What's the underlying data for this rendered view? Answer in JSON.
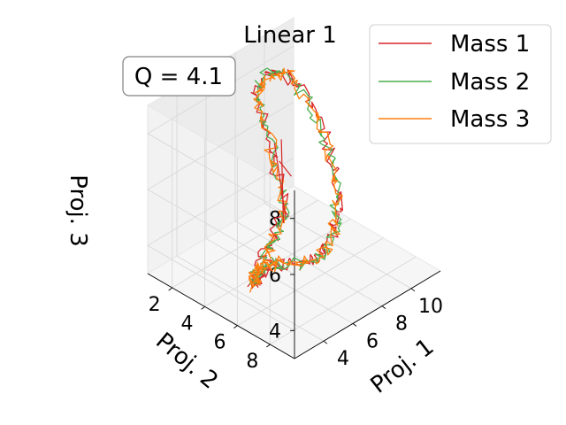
{
  "chart_data": {
    "type": "line",
    "projection": "3d",
    "title": "Linear 1",
    "annotation": "Q = 4.1",
    "xlabel": "Proj. 1",
    "ylabel": "Proj. 2",
    "zlabel": "Proj. 3",
    "xlim": [
      2,
      12
    ],
    "ylim": [
      0.5,
      9.5
    ],
    "zlim": [
      3,
      9
    ],
    "xticks": [
      "4",
      "6",
      "8",
      "10"
    ],
    "yticks": [
      "2",
      "4",
      "6",
      "8"
    ],
    "zticks": [
      "4",
      "6",
      "8"
    ],
    "grid": true,
    "legend_position": "top-right",
    "series": [
      {
        "name": "Mass 1",
        "color": "#d62728"
      },
      {
        "name": "Mass 2",
        "color": "#4caf50"
      },
      {
        "name": "Mass 3",
        "color": "#ff7f0e"
      }
    ],
    "trajectory_guide": {
      "x": [
        3.2,
        4.0,
        4.8,
        5.6,
        6.3,
        6.9,
        7.3,
        7.6,
        8.0,
        8.4,
        8.9,
        9.4,
        9.8,
        10.0,
        9.9,
        9.6,
        9.1,
        8.5,
        7.8,
        7.0,
        6.2,
        5.4,
        4.6,
        3.9,
        3.4,
        3.1,
        3.0,
        3.1,
        3.2
      ],
      "y": [
        5.8,
        5.5,
        5.3,
        5.2,
        5.0,
        4.4,
        3.6,
        2.8,
        2.0,
        1.6,
        1.5,
        1.7,
        2.2,
        3.0,
        3.9,
        4.8,
        5.6,
        6.3,
        6.9,
        7.4,
        7.7,
        7.8,
        7.6,
        7.3,
        7.0,
        6.7,
        6.4,
        6.1,
        5.8
      ],
      "z": [
        4.0,
        4.2,
        4.6,
        5.0,
        5.3,
        5.8,
        6.4,
        7.0,
        7.5,
        7.9,
        8.2,
        8.3,
        8.1,
        7.7,
        7.1,
        6.6,
        6.1,
        5.7,
        5.4,
        5.2,
        5.0,
        4.9,
        4.9,
        5.0,
        5.1,
        5.0,
        4.7,
        4.3,
        4.0
      ]
    },
    "extra_segments_mass1": [
      {
        "x": [
          7.0,
          6.2
        ],
        "y": [
          3.8,
          5.2
        ],
        "z": [
          7.2,
          5.3
        ]
      },
      {
        "x": [
          6.8,
          5.6
        ],
        "y": [
          4.4,
          5.6
        ],
        "z": [
          7.6,
          5.4
        ]
      },
      {
        "x": [
          7.1,
          7.6
        ],
        "y": [
          4.0,
          4.3
        ],
        "z": [
          6.6,
          6.0
        ]
      }
    ]
  }
}
